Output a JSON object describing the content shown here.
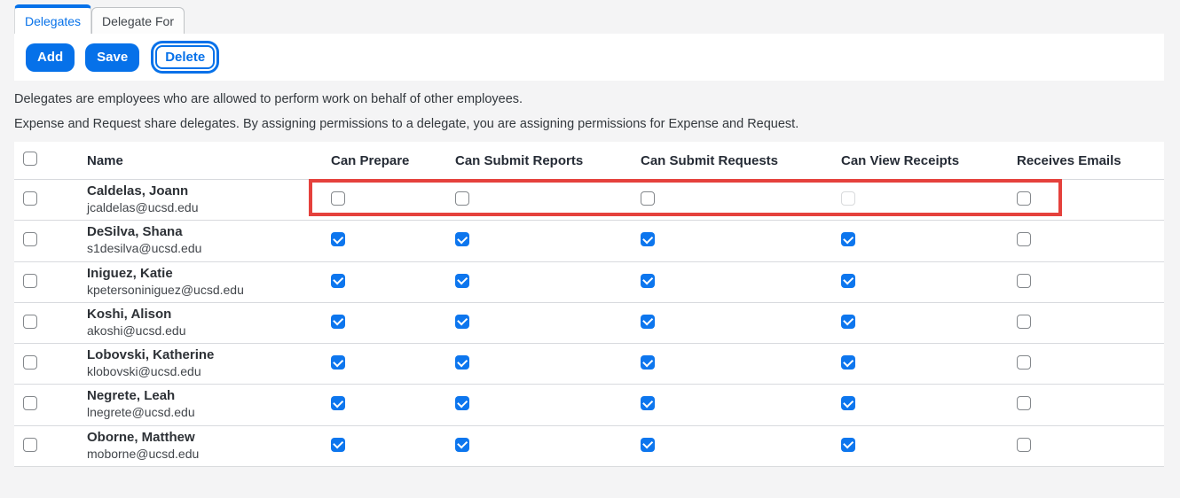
{
  "tabs": [
    {
      "label": "Delegates",
      "active": true
    },
    {
      "label": "Delegate For",
      "active": false
    }
  ],
  "toolbar": {
    "add_label": "Add",
    "save_label": "Save",
    "delete_label": "Delete"
  },
  "description": {
    "line1": "Delegates are employees who are allowed to perform work on behalf of other employees.",
    "line2": "Expense and Request share delegates. By assigning permissions to a delegate, you are assigning permissions for Expense and Request."
  },
  "table": {
    "columns": [
      "Name",
      "Can Prepare",
      "Can Submit Reports",
      "Can Submit Requests",
      "Can View Receipts",
      "Receives Emails"
    ],
    "rows": [
      {
        "name": "Caldelas, Joann",
        "email": "jcaldelas@ucsd.edu",
        "selected": false,
        "permissions": [
          "unchecked",
          "unchecked",
          "unchecked",
          "disabled",
          "unchecked"
        ],
        "highlighted": true
      },
      {
        "name": "DeSilva, Shana",
        "email": "s1desilva@ucsd.edu",
        "selected": false,
        "permissions": [
          "checked",
          "checked",
          "checked",
          "checked",
          "unchecked"
        ],
        "highlighted": false
      },
      {
        "name": "Iniguez, Katie",
        "email": "kpetersoniniguez@ucsd.edu",
        "selected": false,
        "permissions": [
          "checked",
          "checked",
          "checked",
          "checked",
          "unchecked"
        ],
        "highlighted": false
      },
      {
        "name": "Koshi, Alison",
        "email": "akoshi@ucsd.edu",
        "selected": false,
        "permissions": [
          "checked",
          "checked",
          "checked",
          "checked",
          "unchecked"
        ],
        "highlighted": false
      },
      {
        "name": "Lobovski, Katherine",
        "email": "klobovski@ucsd.edu",
        "selected": false,
        "permissions": [
          "checked",
          "checked",
          "checked",
          "checked",
          "unchecked"
        ],
        "highlighted": false
      },
      {
        "name": "Negrete, Leah",
        "email": "lnegrete@ucsd.edu",
        "selected": false,
        "permissions": [
          "checked",
          "checked",
          "checked",
          "checked",
          "unchecked"
        ],
        "highlighted": false
      },
      {
        "name": "Oborne, Matthew",
        "email": "moborne@ucsd.edu",
        "selected": false,
        "permissions": [
          "checked",
          "checked",
          "checked",
          "checked",
          "unchecked"
        ],
        "highlighted": false
      }
    ]
  },
  "annotation": {
    "type": "highlight-rectangle",
    "color": "#e5413c"
  },
  "colors": {
    "accent_blue": "#0671e9",
    "checkbox_blue": "#0d76ee",
    "page_background": "#f4f4f5"
  }
}
